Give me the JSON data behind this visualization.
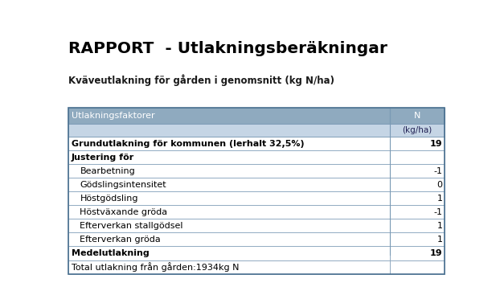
{
  "title": "RAPPORT  - Utlakningsberäkningar",
  "subtitle": "Kväveutlakning för gården i genomsnitt (kg N/ha)",
  "header_col1": "Utlakningsfaktorer",
  "header_col2": "N",
  "subheader_col2": "(kg/ha)",
  "header_bg": "#8faabf",
  "header_text": "#ffffff",
  "subheader_bg": "#c5d5e5",
  "row_bg_white": "#ffffff",
  "border_color": "#7a9ab5",
  "rows": [
    {
      "label": "Grundutlakning för kommunen (lerhalt 32,5%)",
      "value": "19",
      "bold": true,
      "indent": 0
    },
    {
      "label": "Justering för",
      "value": "",
      "bold": true,
      "indent": 0
    },
    {
      "label": "Bearbetning",
      "value": "-1",
      "bold": false,
      "indent": 1
    },
    {
      "label": "Gödslingsintensitet",
      "value": "0",
      "bold": false,
      "indent": 1
    },
    {
      "label": "Höstgödsling",
      "value": "1",
      "bold": false,
      "indent": 1
    },
    {
      "label": "Höstväxande gröda",
      "value": "-1",
      "bold": false,
      "indent": 1
    },
    {
      "label": "Efterverkan stallgödsel",
      "value": "1",
      "bold": false,
      "indent": 1
    },
    {
      "label": "Efterverkan gröda",
      "value": "1",
      "bold": false,
      "indent": 1
    },
    {
      "label": "Medelutlakning",
      "value": "19",
      "bold": true,
      "indent": 0
    },
    {
      "label": "Total utlakning från gården:1934kg N",
      "value": "",
      "bold": false,
      "indent": 0
    }
  ],
  "col_split": 0.855,
  "figsize": [
    6.22,
    3.57
  ],
  "dpi": 100
}
